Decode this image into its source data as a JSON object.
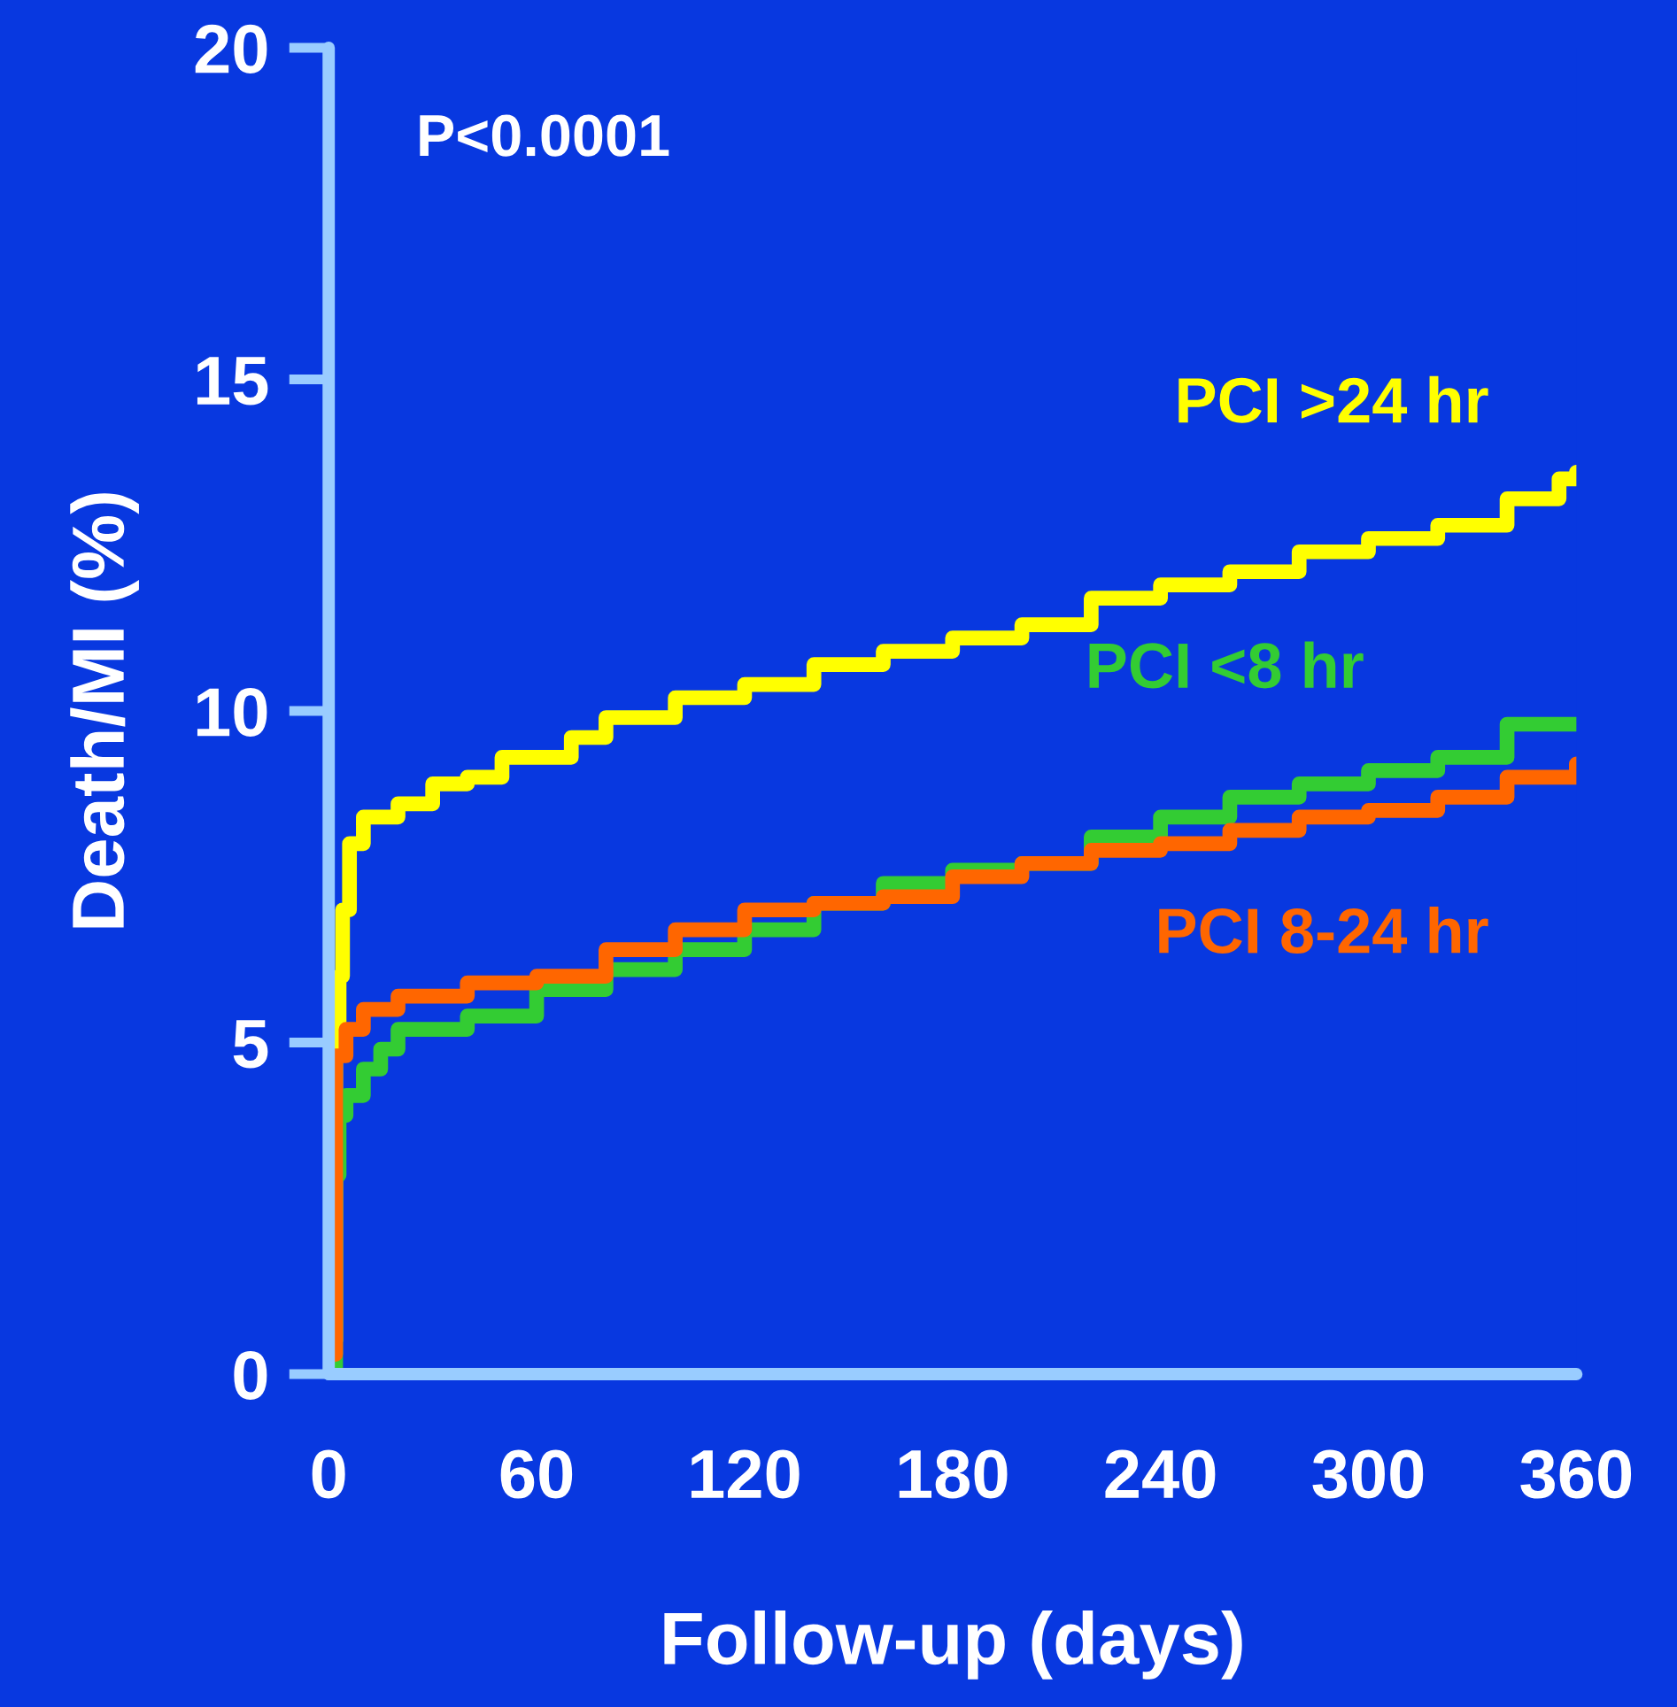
{
  "chart_data": {
    "type": "step",
    "xlabel": "Follow-up (days)",
    "ylabel": "Death/MI (%)",
    "annotations": [
      "P<0.0001"
    ],
    "xlim": [
      0,
      360
    ],
    "xticks": [
      0,
      60,
      120,
      180,
      240,
      300,
      360
    ],
    "ylim": [
      0,
      20
    ],
    "yticks": [
      0,
      5,
      10,
      15,
      20
    ],
    "grid": false,
    "legend": false,
    "series": [
      {
        "name": "PCI >24 hr",
        "color": "#ffff00",
        "x": [
          0,
          1,
          2,
          3,
          4,
          6,
          10,
          20,
          30,
          40,
          50,
          70,
          80,
          100,
          120,
          140,
          160,
          180,
          200,
          220,
          240,
          260,
          280,
          300,
          320,
          340,
          355,
          360
        ],
        "values": [
          0,
          0.5,
          4.9,
          6,
          7,
          8,
          8.4,
          8.6,
          8.9,
          9.0,
          9.3,
          9.6,
          9.9,
          10.2,
          10.4,
          10.7,
          10.9,
          11.1,
          11.3,
          11.7,
          11.9,
          12.1,
          12.4,
          12.6,
          12.8,
          13.2,
          13.5,
          13.6
        ]
      },
      {
        "name": "PCI <8 hr",
        "color": "#33cc33",
        "x": [
          1,
          2,
          3,
          5,
          10,
          15,
          20,
          40,
          60,
          80,
          100,
          120,
          140,
          160,
          180,
          200,
          220,
          240,
          260,
          280,
          300,
          320,
          340,
          360
        ],
        "values": [
          0,
          3,
          3.9,
          4.2,
          4.6,
          4.9,
          5.2,
          5.4,
          5.8,
          6.1,
          6.4,
          6.7,
          7.1,
          7.4,
          7.6,
          7.7,
          8.1,
          8.4,
          8.7,
          8.9,
          9.1,
          9.3,
          9.8,
          9.8
        ]
      },
      {
        "name": "PCI 8-24 hr",
        "color": "#ff6600",
        "x": [
          1,
          2,
          5,
          10,
          20,
          40,
          60,
          80,
          100,
          120,
          140,
          160,
          180,
          200,
          220,
          240,
          260,
          280,
          300,
          320,
          340,
          360
        ],
        "values": [
          0.3,
          4.8,
          5.2,
          5.5,
          5.7,
          5.9,
          6.0,
          6.4,
          6.7,
          7.0,
          7.1,
          7.2,
          7.5,
          7.7,
          7.9,
          8.0,
          8.2,
          8.4,
          8.5,
          8.7,
          9.0,
          9.2
        ]
      }
    ]
  }
}
